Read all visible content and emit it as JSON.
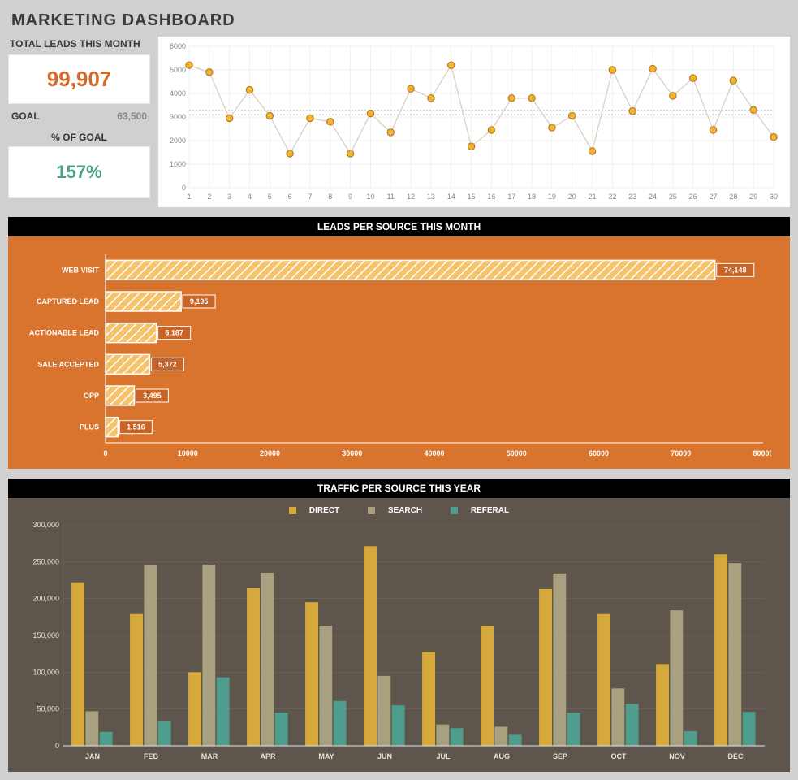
{
  "title": "MARKETING DASHBOARD",
  "kpi": {
    "leads_label": "TOTAL LEADS THIS MONTH",
    "leads_value": "99,907",
    "leads_color": "#d46a2a",
    "goal_label": "GOAL",
    "goal_value": "63,500",
    "pct_label": "% OF GOAL",
    "pct_value": "157%",
    "pct_color": "#4a9f86"
  },
  "line_chart": {
    "type": "line",
    "y_min": 0,
    "y_max": 6000,
    "y_step": 1000,
    "x_labels": [
      "1",
      "2",
      "3",
      "4",
      "5",
      "6",
      "7",
      "8",
      "9",
      "10",
      "11",
      "12",
      "13",
      "14",
      "15",
      "16",
      "17",
      "18",
      "19",
      "20",
      "21",
      "22",
      "23",
      "24",
      "25",
      "26",
      "27",
      "28",
      "29",
      "30"
    ],
    "values": [
      5200,
      4900,
      2950,
      4150,
      3050,
      1450,
      2950,
      2800,
      1450,
      3150,
      2350,
      4200,
      3800,
      5200,
      1750,
      2450,
      3800,
      3800,
      2550,
      3050,
      1550,
      5000,
      3250,
      5050,
      3900,
      4650,
      2450,
      4550,
      3300,
      2150
    ],
    "marker_fill": "#f2b233",
    "marker_stroke": "#b07a20",
    "line_color": "#d9d0c0",
    "grid_color": "#e4e4e4",
    "ref_line_color": "#b8b8b8",
    "ref_lines": [
      3100,
      3300
    ],
    "tick_fontsize": 9,
    "background": "#ffffff"
  },
  "leads_source": {
    "title": "LEADS PER SOURCE THIS MONTH",
    "type": "bar-horizontal",
    "background": "#d8742e",
    "x_min": 0,
    "x_max": 80000,
    "x_step": 10000,
    "categories": [
      "WEB VISIT",
      "CAPTURED LEAD",
      "ACTIONABLE LEAD",
      "SALE ACCEPTED",
      "OPP",
      "PLUS"
    ],
    "values": [
      74148,
      9195,
      6187,
      5372,
      3495,
      1516
    ],
    "value_labels": [
      "74,148",
      "9,195",
      "6,187",
      "5,372",
      "3,495",
      "1,516"
    ],
    "bar_fill": "#f5c36b",
    "bar_hatch": "#ffffff",
    "bar_stroke": "#ffffff",
    "value_bg": "#c76528",
    "text_color": "#ffffff",
    "label_fontsize": 9
  },
  "traffic": {
    "title": "TRAFFIC PER SOURCE THIS YEAR",
    "type": "bar-grouped",
    "background": "#5e554c",
    "legend": [
      "DIRECT",
      "SEARCH",
      "REFERAL"
    ],
    "colors": [
      "#d6a93d",
      "#a8a07e",
      "#4f9d8c"
    ],
    "y_min": 0,
    "y_max": 300000,
    "y_step": 50000,
    "y_labels": [
      "0",
      "50,000",
      "100,000",
      "150,000",
      "200,000",
      "250,000",
      "300,000"
    ],
    "categories": [
      "JAN",
      "FEB",
      "MAR",
      "APR",
      "MAY",
      "JUN",
      "JUL",
      "AUG",
      "SEP",
      "OCT",
      "NOV",
      "DEC"
    ],
    "series": {
      "DIRECT": [
        222000,
        179000,
        100000,
        214000,
        195000,
        271000,
        128000,
        163000,
        213000,
        179000,
        111000,
        260000
      ],
      "SEARCH": [
        47000,
        245000,
        246000,
        235000,
        163000,
        95000,
        29000,
        26000,
        234000,
        78000,
        184000,
        248000
      ],
      "REFERAL": [
        19000,
        33000,
        93000,
        45000,
        61000,
        55000,
        24000,
        15000,
        45000,
        57000,
        20000,
        46000
      ]
    },
    "grid_color": "#6e665d",
    "text_color": "#e8e2d8",
    "label_fontsize": 9
  }
}
